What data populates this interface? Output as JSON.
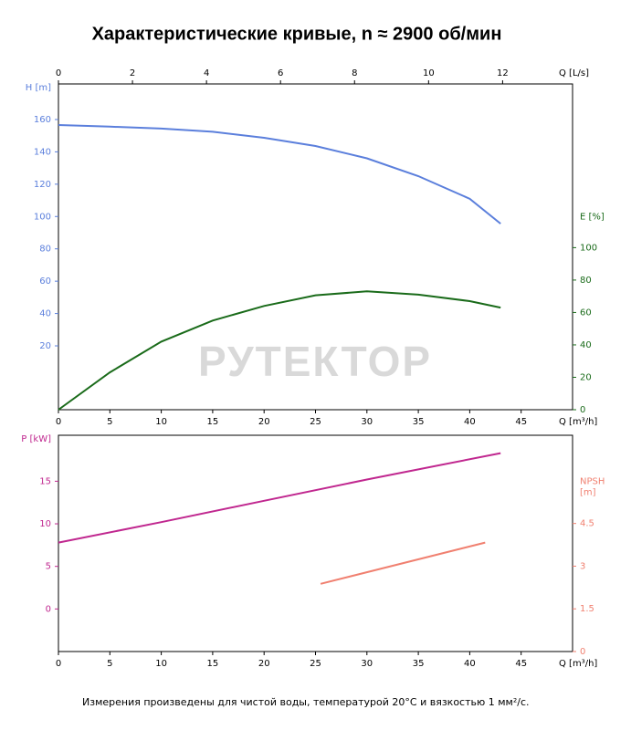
{
  "title": "Характеристические кривые, n ≈ 2900 об/мин",
  "footnote": "Измерения произведены для чистой воды, температурой 20°C и вязкостью 1 мм²/с.",
  "watermark": "РУТЕКТОР",
  "chart_data": [
    {
      "type": "line",
      "x_label": "Q [m³/h]",
      "x2_label": "Q [L/s]",
      "y_label": "H [m]",
      "y2_label": [
        "E [%]"
      ],
      "xlim": [
        0,
        50
      ],
      "xticks": [
        0,
        5,
        10,
        15,
        20,
        25,
        30,
        35,
        40,
        45
      ],
      "x2lim": [
        0,
        13.89
      ],
      "x2ticks": [
        0,
        2,
        4,
        6,
        8,
        10,
        12
      ],
      "ylim": [
        -19.5,
        182
      ],
      "yticks": [
        20,
        40,
        60,
        80,
        100,
        120,
        140,
        160
      ],
      "y2lim": [
        0,
        201
      ],
      "y2ticks": [
        0,
        20,
        40,
        60,
        80,
        100
      ],
      "series": [
        {
          "name": "H",
          "color": "#5b7fdc",
          "x": [
            0,
            5,
            10,
            15,
            20,
            25,
            30,
            35,
            40,
            43
          ],
          "values": [
            156.6,
            155.6,
            154.4,
            152.4,
            148.7,
            143.6,
            136,
            125,
            111,
            95.6
          ]
        },
        {
          "name": "E",
          "color": "#1a6b1a",
          "axis": "y2",
          "x": [
            0,
            5,
            10,
            15,
            20,
            25,
            30,
            35,
            40,
            43
          ],
          "values": [
            0,
            23,
            42,
            55,
            64,
            70.6,
            73,
            71,
            67,
            63
          ]
        }
      ]
    },
    {
      "type": "line",
      "x_label": "Q [m³/h]",
      "y_label": "P [kW]",
      "y2_label": [
        "NPSH",
        "[m]"
      ],
      "xlim": [
        0,
        50
      ],
      "xticks": [
        0,
        5,
        10,
        15,
        20,
        25,
        30,
        35,
        40,
        45
      ],
      "ylim": [
        -5,
        20.4
      ],
      "yticks": [
        0,
        5,
        10,
        15
      ],
      "y2lim": [
        0,
        7.6
      ],
      "y2ticks": [
        0,
        1.5,
        3,
        4.5
      ],
      "series": [
        {
          "name": "P",
          "color": "#c0278f",
          "x": [
            0,
            10,
            20,
            30,
            43
          ],
          "values": [
            7.8,
            10.2,
            12.7,
            15.2,
            18.3
          ]
        },
        {
          "name": "NPSH",
          "color": "#f08070",
          "axis": "y2",
          "x": [
            25.5,
            41.5
          ],
          "values": [
            2.38,
            3.83
          ]
        }
      ]
    }
  ]
}
